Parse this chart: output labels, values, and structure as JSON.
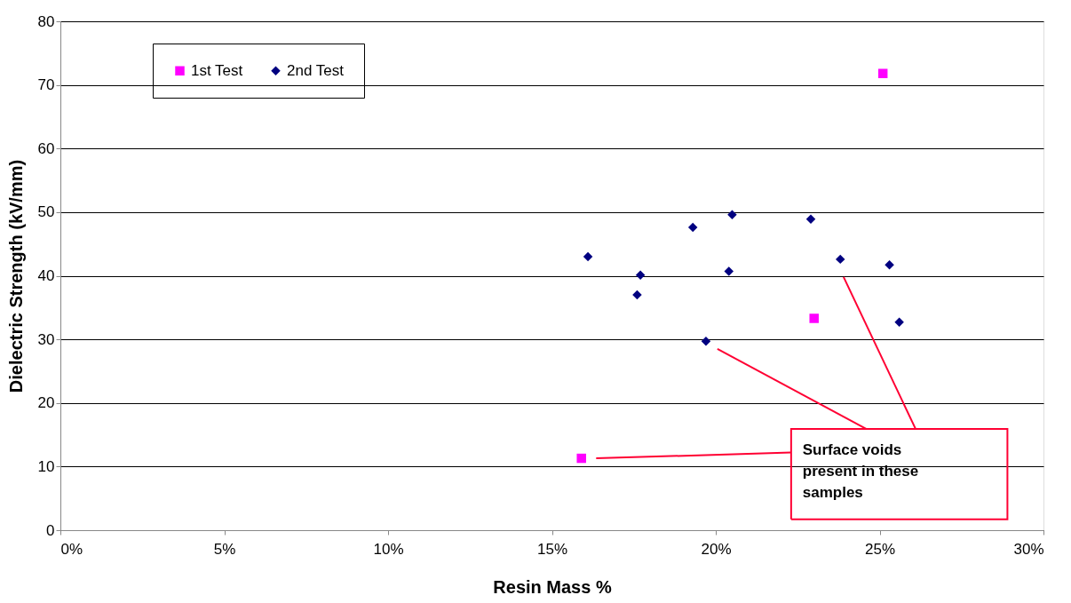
{
  "chart_data": {
    "type": "scatter",
    "xlabel": "Resin Mass %",
    "ylabel": "Dielectric Strength (kV/mm)",
    "xlim": [
      0,
      30
    ],
    "ylim": [
      0,
      80
    ],
    "xticks": [
      {
        "value": 0,
        "label": "0%"
      },
      {
        "value": 5,
        "label": "5%"
      },
      {
        "value": 10,
        "label": "10%"
      },
      {
        "value": 15,
        "label": "15%"
      },
      {
        "value": 20,
        "label": "20%"
      },
      {
        "value": 25,
        "label": "25%"
      },
      {
        "value": 30,
        "label": "30%"
      }
    ],
    "yticks": [
      0,
      10,
      20,
      30,
      40,
      50,
      60,
      70,
      80
    ],
    "grid": "y",
    "legend": "top left",
    "series": [
      {
        "name": "1st Test",
        "color": "#ff00ff",
        "marker": "square",
        "x": [
          15.9,
          25.1,
          23.0
        ],
        "values": [
          11.3,
          71.8,
          33.3
        ]
      },
      {
        "name": "2nd Test",
        "color": "#000080",
        "marker": "diamond",
        "x": [
          16.1,
          17.7,
          17.6,
          19.3,
          20.5,
          20.4,
          19.7,
          22.9,
          23.8,
          25.3,
          25.6
        ],
        "values": [
          43.0,
          40.1,
          37.0,
          47.6,
          49.6,
          40.7,
          29.7,
          48.9,
          42.6,
          41.7,
          32.7
        ]
      }
    ],
    "annotations": [
      "Surface voids present in these samples"
    ]
  }
}
